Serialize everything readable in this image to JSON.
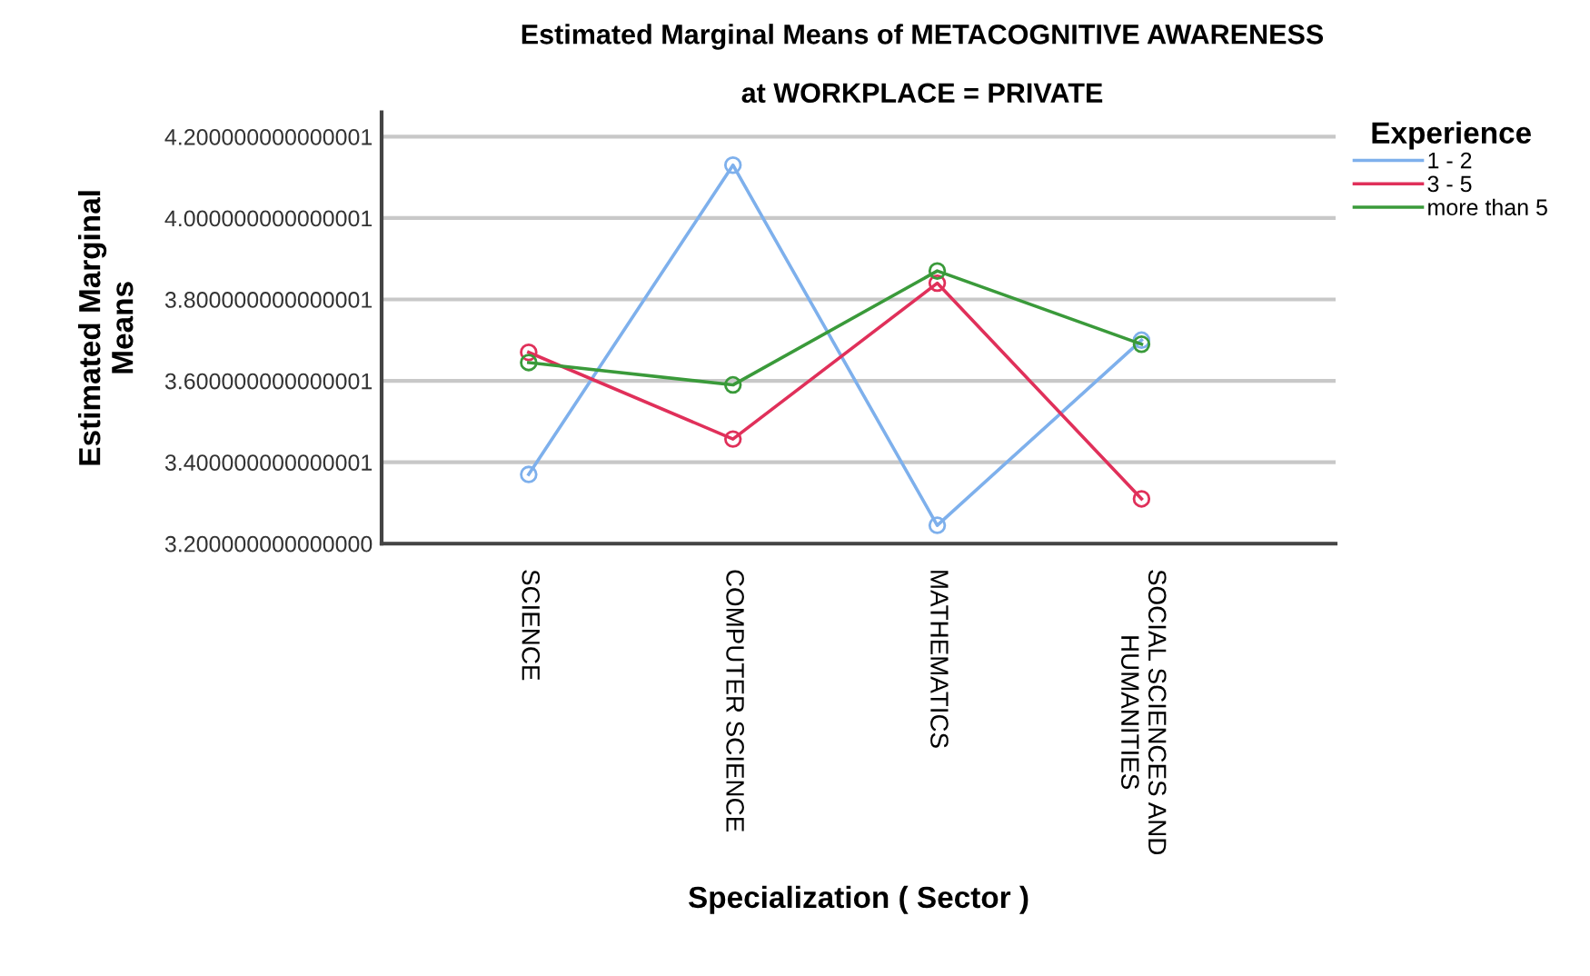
{
  "chart_data": {
    "type": "line",
    "title": "Estimated Marginal Means of METACOGNITIVE AWARENESS",
    "subtitle": "at WORKPLACE = PRIVATE",
    "xlabel": "Specialization ( Sector )",
    "ylabel": "Estimated Marginal\nMeans",
    "legend_title": "Experience",
    "categories": [
      "SCIENCE",
      "COMPUTER SCIENCE",
      "MATHEMATICS",
      "SOCIAL SCIENCES AND\nHUMANITIES"
    ],
    "series": [
      {
        "name": "1 - 2",
        "color": "#7eb0ec",
        "values": [
          3.37,
          4.13,
          3.245,
          3.7
        ]
      },
      {
        "name": "3 - 5",
        "color": "#e0305a",
        "values": [
          3.67,
          3.457,
          3.84,
          3.31
        ]
      },
      {
        "name": "more than 5",
        "color": "#3a9a3a",
        "values": [
          3.645,
          3.59,
          3.87,
          3.69
        ]
      }
    ],
    "ylim": [
      3.2,
      4.26
    ],
    "yticks": [
      {
        "value": 3.2,
        "label": "3.200000000000000"
      },
      {
        "value": 3.4,
        "label": "3.400000000000001"
      },
      {
        "value": 3.6,
        "label": "3.600000000000001"
      },
      {
        "value": 3.8,
        "label": "3.800000000000001"
      },
      {
        "value": 4.0,
        "label": "4.000000000000001"
      },
      {
        "value": 4.2,
        "label": "4.200000000000001"
      }
    ],
    "grid": "y",
    "legend": "right",
    "marker": "circle",
    "line_style": "solid"
  }
}
